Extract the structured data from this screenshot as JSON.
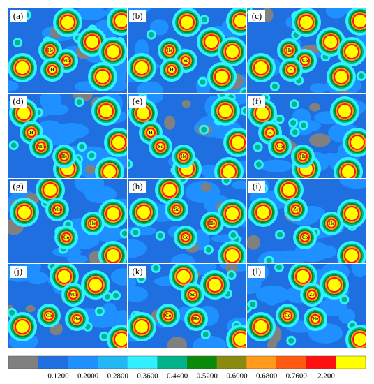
{
  "panels": [
    {
      "label": "(a)",
      "atoms": [
        "He",
        "Mn",
        "H"
      ]
    },
    {
      "label": "(b)",
      "atoms": [
        "He",
        "Sc",
        "H"
      ]
    },
    {
      "label": "(c)",
      "atoms": [
        "He",
        "Co",
        "H"
      ]
    },
    {
      "label": "(d)",
      "atoms": [
        "H",
        "Mn",
        "He"
      ]
    },
    {
      "label": "(e)",
      "atoms": [
        "H",
        "Sc",
        "He"
      ]
    },
    {
      "label": "(f)",
      "atoms": [
        "H",
        "Co",
        "He"
      ]
    },
    {
      "label": "(g)",
      "atoms": [
        "Mn",
        "He",
        "Co"
      ]
    },
    {
      "label": "(h)",
      "atoms": [
        "Sc",
        "He",
        "Co"
      ]
    },
    {
      "label": "(i)",
      "atoms": [
        "Zr",
        "He",
        "Co"
      ]
    },
    {
      "label": "(j)",
      "atoms": [
        "Mn",
        "Co",
        "He"
      ]
    },
    {
      "label": "(k)",
      "atoms": [
        "Sc",
        "Co",
        "He"
      ]
    },
    {
      "label": "(l)",
      "atoms": [
        "Zr",
        "Co",
        "He"
      ]
    }
  ],
  "colorbar": {
    "colors": [
      "#808080",
      "#1f6fe0",
      "#1e90ff",
      "#22b8f5",
      "#33f0ff",
      "#00b38a",
      "#0a8a0a",
      "#8a8a10",
      "#ff9a1a",
      "#ff5a10",
      "#ff1010",
      "#ffff00"
    ],
    "labels": [
      "0.1200",
      "0.2000",
      "0.2800",
      "0.3600",
      "0.4400",
      "0.5200",
      "0.6000",
      "0.6800",
      "0.7600",
      "2.200"
    ]
  }
}
